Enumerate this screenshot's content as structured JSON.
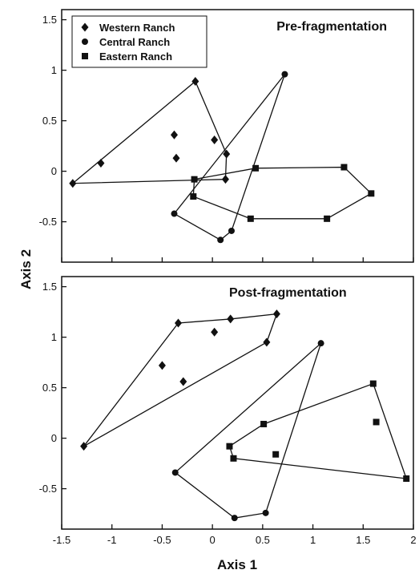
{
  "chart_data": [
    {
      "type": "scatter",
      "title": "Pre-fragmentation",
      "xlabel": "",
      "ylabel": "Axis 2",
      "xlim": [
        -1.5,
        2
      ],
      "ylim": [
        -0.9,
        1.6
      ],
      "xticks": [
        "-1.5",
        "-1",
        "-0.5",
        "0",
        "0.5",
        "1",
        "1.5",
        "2"
      ],
      "yticks": [
        "-0.5",
        "0",
        "0.5",
        "1",
        "1.5"
      ],
      "legend_placement": "top-left",
      "grid": false,
      "series": [
        {
          "name": "Western Ranch",
          "marker": "diamond",
          "points": [
            [
              -1.39,
              -0.12
            ],
            [
              -1.11,
              0.08
            ],
            [
              -0.38,
              0.36
            ],
            [
              -0.36,
              0.13
            ],
            [
              0.02,
              0.31
            ],
            [
              0.14,
              0.17
            ],
            [
              0.13,
              -0.08
            ],
            [
              -0.17,
              0.89
            ]
          ],
          "hull": [
            [
              -1.39,
              -0.12
            ],
            [
              -0.17,
              0.89
            ],
            [
              0.14,
              0.17
            ],
            [
              0.13,
              -0.08
            ]
          ]
        },
        {
          "name": "Central Ranch",
          "marker": "circle",
          "points": [
            [
              -0.38,
              -0.42
            ],
            [
              0.08,
              -0.68
            ],
            [
              0.19,
              -0.59
            ],
            [
              0.72,
              0.96
            ]
          ],
          "hull": [
            [
              -0.38,
              -0.42
            ],
            [
              0.08,
              -0.68
            ],
            [
              0.19,
              -0.59
            ],
            [
              0.72,
              0.96
            ]
          ]
        },
        {
          "name": "Eastern Ranch",
          "marker": "square",
          "points": [
            [
              -0.18,
              -0.08
            ],
            [
              -0.19,
              -0.25
            ],
            [
              0.38,
              -0.47
            ],
            [
              1.14,
              -0.47
            ],
            [
              1.58,
              -0.22
            ],
            [
              1.31,
              0.04
            ],
            [
              0.43,
              0.03
            ]
          ],
          "hull": [
            [
              -0.18,
              -0.08
            ],
            [
              0.43,
              0.03
            ],
            [
              1.31,
              0.04
            ],
            [
              1.58,
              -0.22
            ],
            [
              1.14,
              -0.47
            ],
            [
              0.38,
              -0.47
            ],
            [
              -0.19,
              -0.25
            ]
          ]
        }
      ]
    },
    {
      "type": "scatter",
      "title": "Post-fragmentation",
      "xlabel": "Axis 1",
      "ylabel": "Axis 2",
      "xlim": [
        -1.5,
        2
      ],
      "ylim": [
        -0.9,
        1.6
      ],
      "xticks": [
        "-1.5",
        "-1",
        "-0.5",
        "0",
        "0.5",
        "1",
        "1.5",
        "2"
      ],
      "yticks": [
        "-0.5",
        "0",
        "0.5",
        "1",
        "1.5"
      ],
      "grid": false,
      "series": [
        {
          "name": "Western Ranch",
          "marker": "diamond",
          "points": [
            [
              -1.28,
              -0.08
            ],
            [
              -0.5,
              0.72
            ],
            [
              -0.29,
              0.56
            ],
            [
              -0.34,
              1.14
            ],
            [
              0.02,
              1.05
            ],
            [
              0.18,
              1.18
            ],
            [
              0.64,
              1.23
            ],
            [
              0.54,
              0.95
            ]
          ],
          "hull": [
            [
              -1.28,
              -0.08
            ],
            [
              -0.34,
              1.14
            ],
            [
              0.18,
              1.18
            ],
            [
              0.64,
              1.23
            ],
            [
              0.54,
              0.95
            ]
          ]
        },
        {
          "name": "Central Ranch",
          "marker": "circle",
          "points": [
            [
              -0.37,
              -0.34
            ],
            [
              0.22,
              -0.79
            ],
            [
              0.53,
              -0.74
            ],
            [
              1.08,
              0.94
            ]
          ],
          "hull": [
            [
              -0.37,
              -0.34
            ],
            [
              0.22,
              -0.79
            ],
            [
              0.53,
              -0.74
            ],
            [
              1.08,
              0.94
            ]
          ]
        },
        {
          "name": "Eastern Ranch",
          "marker": "square",
          "points": [
            [
              0.17,
              -0.08
            ],
            [
              0.21,
              -0.2
            ],
            [
              0.51,
              0.14
            ],
            [
              0.63,
              -0.16
            ],
            [
              1.6,
              0.54
            ],
            [
              1.63,
              0.16
            ],
            [
              1.93,
              -0.4
            ]
          ],
          "hull": [
            [
              0.17,
              -0.08
            ],
            [
              0.51,
              0.14
            ],
            [
              1.6,
              0.54
            ],
            [
              1.93,
              -0.4
            ],
            [
              0.21,
              -0.2
            ]
          ]
        }
      ]
    }
  ]
}
